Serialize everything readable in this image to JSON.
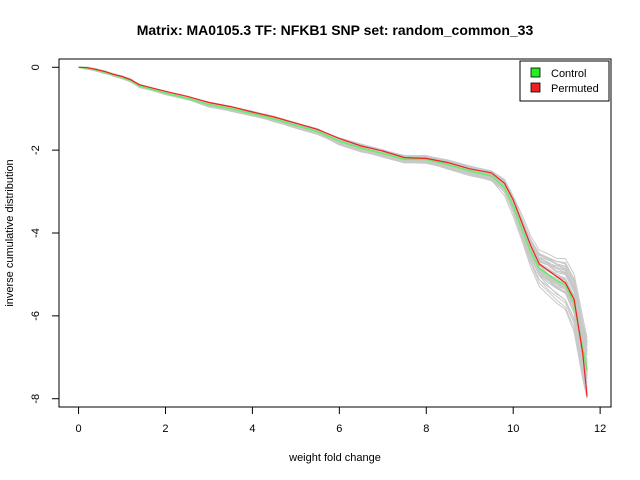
{
  "chart_data": {
    "type": "line",
    "title": "Matrix: MA0105.3 TF: NFKB1 SNP set: random_common_33",
    "xlabel": "weight fold change",
    "ylabel": "inverse cumulative distribution",
    "xlim": [
      -0.45,
      12.25
    ],
    "ylim": [
      -8.2,
      0.2
    ],
    "xticks": [
      0,
      2,
      4,
      6,
      8,
      10,
      12
    ],
    "yticks": [
      0,
      -2,
      -4,
      -6,
      -8
    ],
    "grid": false,
    "legend_position": "top-right",
    "legend": [
      {
        "label": "Control",
        "color": "#22ee22"
      },
      {
        "label": "Permuted",
        "color": "#ee2222"
      }
    ],
    "background_series": {
      "color": "#c8c8c8",
      "count": 40,
      "description_hidden": true
    },
    "series": [
      {
        "name": "Control",
        "color": "#66ee66",
        "x": [
          0,
          0.2,
          0.4,
          0.6,
          0.8,
          1.0,
          1.2,
          1.4,
          2.0,
          2.5,
          3.0,
          3.5,
          4.0,
          4.5,
          5.0,
          5.5,
          6.0,
          6.5,
          7.0,
          7.5,
          8.0,
          8.5,
          9.0,
          9.5,
          9.8,
          10.0,
          10.2,
          10.4,
          10.6,
          10.8,
          11.0,
          11.2,
          11.4,
          11.6,
          11.7
        ],
        "y": [
          0,
          -0.02,
          -0.06,
          -0.12,
          -0.18,
          -0.24,
          -0.32,
          -0.45,
          -0.62,
          -0.75,
          -0.9,
          -1.0,
          -1.12,
          -1.25,
          -1.4,
          -1.55,
          -1.78,
          -1.95,
          -2.08,
          -2.22,
          -2.22,
          -2.35,
          -2.5,
          -2.62,
          -2.9,
          -3.35,
          -3.9,
          -4.45,
          -4.85,
          -5.0,
          -5.15,
          -5.25,
          -5.7,
          -6.8,
          -7.3
        ]
      },
      {
        "name": "Permuted",
        "color": "#ee2222",
        "x": [
          0,
          0.2,
          0.4,
          0.6,
          0.8,
          1.0,
          1.2,
          1.4,
          2.0,
          2.5,
          3.0,
          3.5,
          4.0,
          4.5,
          5.0,
          5.5,
          6.0,
          6.5,
          7.0,
          7.5,
          8.0,
          8.5,
          9.0,
          9.5,
          9.8,
          10.0,
          10.2,
          10.4,
          10.6,
          10.8,
          11.0,
          11.2,
          11.4,
          11.6,
          11.7
        ],
        "y": [
          0,
          -0.01,
          -0.05,
          -0.1,
          -0.17,
          -0.22,
          -0.3,
          -0.42,
          -0.58,
          -0.7,
          -0.85,
          -0.95,
          -1.08,
          -1.2,
          -1.35,
          -1.5,
          -1.72,
          -1.9,
          -2.02,
          -2.18,
          -2.2,
          -2.3,
          -2.45,
          -2.55,
          -2.8,
          -3.2,
          -3.75,
          -4.3,
          -4.75,
          -4.9,
          -5.05,
          -5.2,
          -5.6,
          -6.9,
          -7.95
        ]
      }
    ]
  }
}
